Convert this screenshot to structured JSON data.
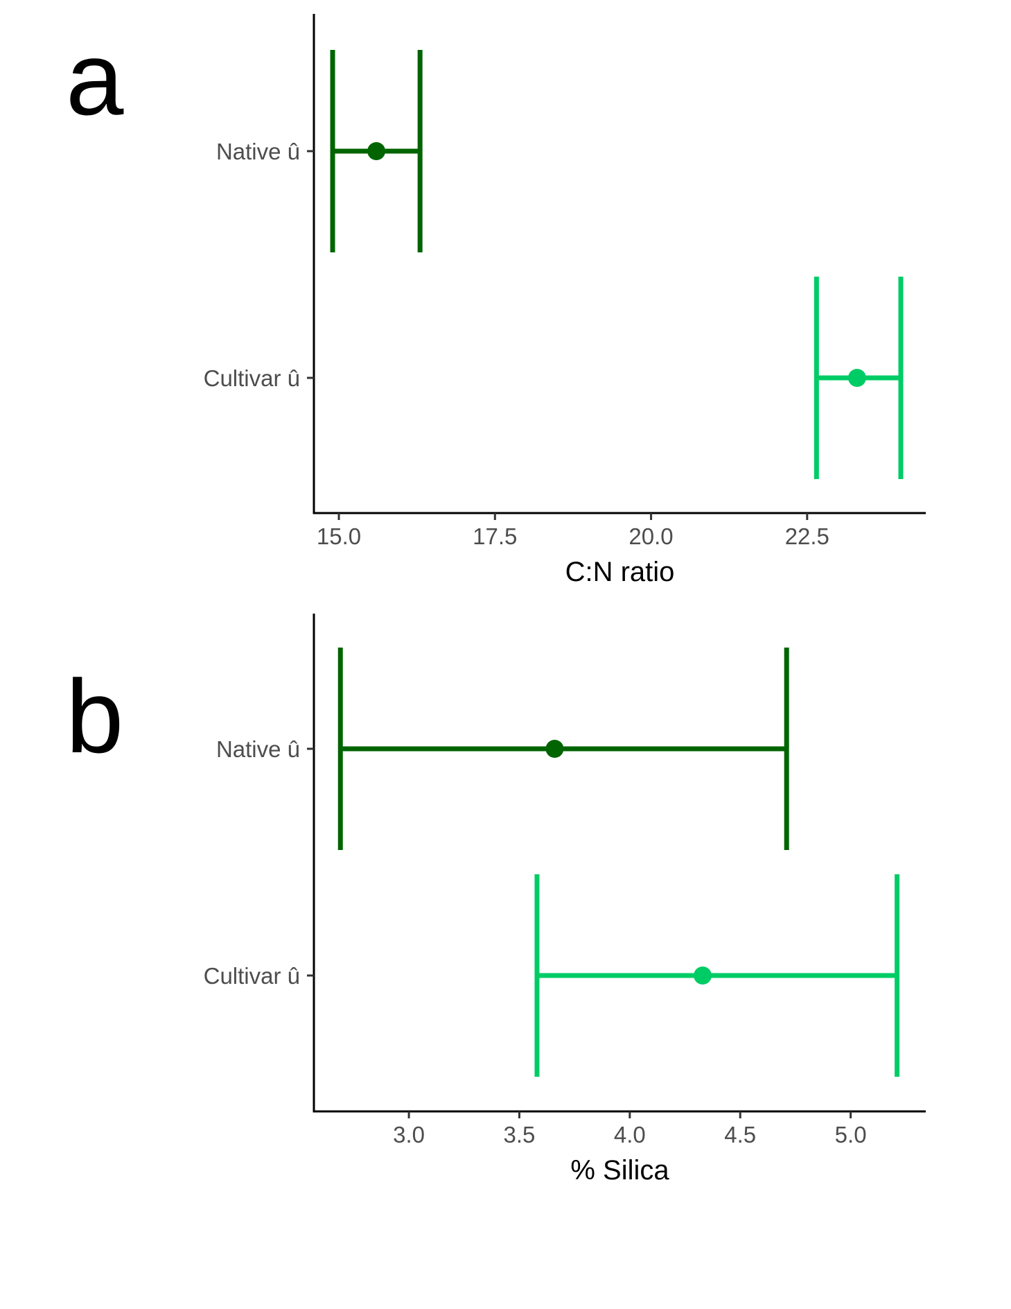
{
  "colors": {
    "native": "#006400",
    "cultivar": "#00CC66"
  },
  "chart_data": [
    {
      "type": "errorbar",
      "panel_label": "a",
      "xlabel": "C:N ratio",
      "xlim": [
        14.6,
        24.4
      ],
      "x_ticks": [
        15.0,
        17.5,
        20.0,
        22.5
      ],
      "x_tick_labels": [
        "15.0",
        "17.5",
        "20.0",
        "22.5"
      ],
      "grid": false,
      "series": [
        {
          "name": "Native û",
          "mean": 15.6,
          "lower": 14.9,
          "upper": 16.3,
          "color_key": "native"
        },
        {
          "name": "Cultivar û",
          "mean": 23.3,
          "lower": 22.65,
          "upper": 24.0,
          "color_key": "cultivar"
        }
      ]
    },
    {
      "type": "errorbar",
      "panel_label": "b",
      "xlabel": "% Silica",
      "xlim": [
        2.57,
        5.34
      ],
      "x_ticks": [
        3.0,
        3.5,
        4.0,
        4.5,
        5.0
      ],
      "x_tick_labels": [
        "3.0",
        "3.5",
        "4.0",
        "4.5",
        "5.0"
      ],
      "grid": false,
      "series": [
        {
          "name": "Native û",
          "mean": 3.66,
          "lower": 2.69,
          "upper": 4.71,
          "color_key": "native"
        },
        {
          "name": "Cultivar û",
          "mean": 4.33,
          "lower": 3.58,
          "upper": 5.21,
          "color_key": "cultivar"
        }
      ]
    }
  ]
}
